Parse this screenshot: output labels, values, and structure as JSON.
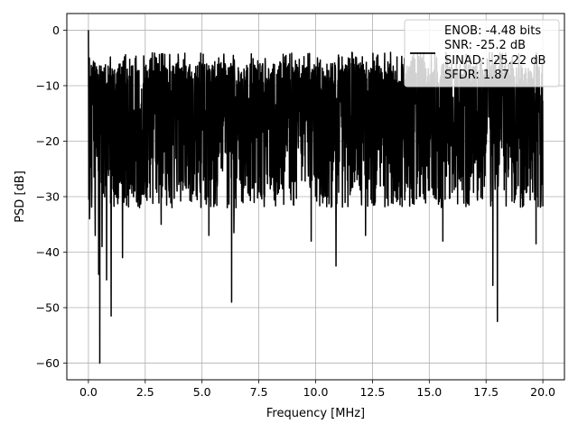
{
  "chart_data": {
    "type": "line",
    "title": "",
    "xlabel": "Frequency [MHz]",
    "ylabel": "PSD [dB]",
    "xlim": [
      -0.95,
      20.95
    ],
    "ylim": [
      -63,
      3
    ],
    "xticks": [
      0.0,
      2.5,
      5.0,
      7.5,
      10.0,
      12.5,
      15.0,
      17.5,
      20.0
    ],
    "xtick_labels": [
      "0.0",
      "2.5",
      "5.0",
      "7.5",
      "10.0",
      "12.5",
      "15.0",
      "17.5",
      "20.0"
    ],
    "yticks": [
      0,
      -10,
      -20,
      -30,
      -40,
      -50,
      -60
    ],
    "ytick_labels": [
      "0",
      "−10",
      "−20",
      "−30",
      "−40",
      "−50",
      "−60"
    ],
    "grid": true,
    "legend_position": "upper-right",
    "legend": [
      "ENOB: -4.48 bits",
      "SNR: -25.2 dB",
      "SINAD: -25.22 dB",
      "SFDR: 1.87"
    ],
    "series": [
      {
        "color": "#000000",
        "points": 2400,
        "x_range": [
          0,
          20
        ],
        "band_upper_db": -6,
        "band_lower_db": -27,
        "peaks": [
          {
            "x": 0.0,
            "y": 0
          },
          {
            "x": 0.04,
            "y": -5
          },
          {
            "x": 11.6,
            "y": -4
          },
          {
            "x": 13.3,
            "y": -4
          }
        ],
        "dips": [
          {
            "x": 0.05,
            "y": -34
          },
          {
            "x": 0.3,
            "y": -37
          },
          {
            "x": 0.45,
            "y": -44
          },
          {
            "x": 0.5,
            "y": -60
          },
          {
            "x": 0.6,
            "y": -39
          },
          {
            "x": 0.8,
            "y": -45
          },
          {
            "x": 1.0,
            "y": -51.5
          },
          {
            "x": 1.5,
            "y": -41
          },
          {
            "x": 3.2,
            "y": -35
          },
          {
            "x": 5.3,
            "y": -37
          },
          {
            "x": 6.3,
            "y": -49
          },
          {
            "x": 6.4,
            "y": -36.5
          },
          {
            "x": 9.8,
            "y": -38
          },
          {
            "x": 10.9,
            "y": -42.5
          },
          {
            "x": 12.2,
            "y": -37
          },
          {
            "x": 15.6,
            "y": -38
          },
          {
            "x": 17.8,
            "y": -46
          },
          {
            "x": 18.0,
            "y": -52.5
          },
          {
            "x": 19.7,
            "y": -38.5
          }
        ]
      }
    ]
  }
}
